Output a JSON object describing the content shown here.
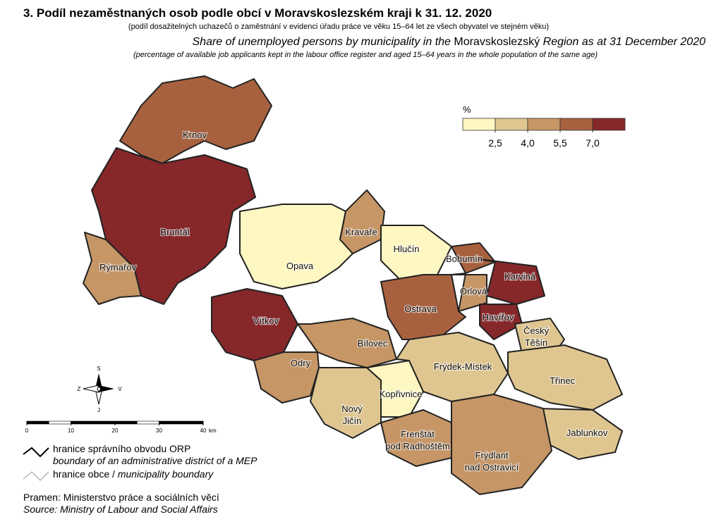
{
  "header": {
    "title": "3. Podíl nezaměstnaných osob podle obcí v Moravskoslezském kraji k 31. 12. 2020",
    "subtitle": "(podíl dosažitelných uchazečů o zaměstnání v evidenci úřadu práce ve věku 15–64 let ze všech obyvatel ve stejném věku)",
    "title_en": [
      "Share of unemployed persons by municipality in the ",
      "Moravskoslezský",
      " Region as at 31 December 2020"
    ],
    "subtitle_en": "(percentage of available job applicants kept in the labour office register and aged 15–64 years in the whole population of the same age)"
  },
  "legend": {
    "unit": "%",
    "colors": [
      "#fff7c2",
      "#dfc690",
      "#c69666",
      "#a8613f",
      "#86272a"
    ],
    "ticks": [
      {
        "value": 2.5,
        "label": "2,5"
      },
      {
        "value": 4.0,
        "label": "4,0"
      },
      {
        "value": 5.5,
        "label": "5,5"
      },
      {
        "value": 7.0,
        "label": "7,0"
      }
    ]
  },
  "places": [
    {
      "name": [
        "Krnov"
      ]
    },
    {
      "name": [
        "Bruntál"
      ]
    },
    {
      "name": [
        "Rýmařov"
      ]
    },
    {
      "name": [
        "Opava"
      ]
    },
    {
      "name": [
        "Kravaře"
      ]
    },
    {
      "name": [
        "Hlučín"
      ]
    },
    {
      "name": [
        "Bohumín"
      ]
    },
    {
      "name": [
        "Karviná"
      ]
    },
    {
      "name": [
        "Orlová"
      ]
    },
    {
      "name": [
        "Ostrava"
      ]
    },
    {
      "name": [
        "Havířov"
      ]
    },
    {
      "name": [
        "Český",
        "Těšín"
      ]
    },
    {
      "name": [
        "Vítkov"
      ]
    },
    {
      "name": [
        "Bílovec"
      ]
    },
    {
      "name": [
        "Odry"
      ]
    },
    {
      "name": [
        "Frýdek-Místek"
      ]
    },
    {
      "name": [
        "Třinec"
      ]
    },
    {
      "name": [
        "Kopřivnice"
      ]
    },
    {
      "name": [
        "Nový",
        "Jičín"
      ]
    },
    {
      "name": [
        "Frenštát",
        "pod Radhoštěm"
      ]
    },
    {
      "name": [
        "Jablunkov"
      ]
    },
    {
      "name": [
        "Frýdlant",
        "nad Ostravicí"
      ]
    }
  ],
  "compass": {
    "north": "S",
    "west": "Z",
    "east": "V",
    "south": "J"
  },
  "scale": {
    "ticks": [
      0,
      10,
      20,
      30,
      40
    ],
    "unit": "km"
  },
  "key": {
    "orp_cz": "hranice správního obvodu ORP",
    "orp_en": "boundary of an administrative district of a MEP",
    "obec_cz": "hranice obce",
    "obec_en": "municipality boundary",
    "separator": " / "
  },
  "source": {
    "cz": "Pramen: Ministerstvo práce a sociálních věcí",
    "en": "Source: Ministry of Labour and Social Affairs"
  }
}
